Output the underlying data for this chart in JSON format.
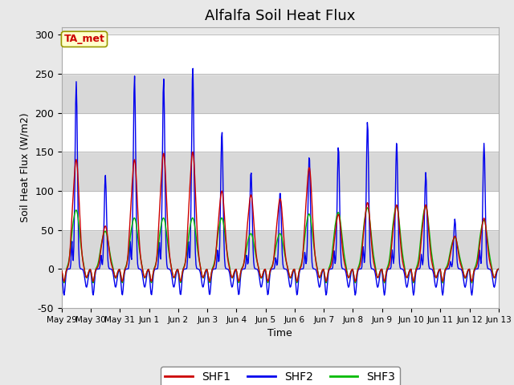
{
  "title": "Alfalfa Soil Heat Flux",
  "xlabel": "Time",
  "ylabel": "Soil Heat Flux (W/m2)",
  "ylim": [
    -50,
    310
  ],
  "yticks": [
    -50,
    0,
    50,
    100,
    150,
    200,
    250,
    300
  ],
  "plot_bg_color": "#e8e8e8",
  "shf1_color": "#cc0000",
  "shf2_color": "#0000ee",
  "shf3_color": "#00bb00",
  "legend_labels": [
    "SHF1",
    "SHF2",
    "SHF3"
  ],
  "annotation_text": "TA_met",
  "annotation_color": "#cc0000",
  "annotation_bg": "#ffffcc",
  "annotation_border": "#999900",
  "num_days": 15,
  "xtick_labels": [
    "May 29",
    "May 30",
    "May 31",
    "Jun 1",
    "Jun 2",
    "Jun 3",
    "Jun 4",
    "Jun 5",
    "Jun 6",
    "Jun 7",
    "Jun 8",
    "Jun 9",
    "Jun 10",
    "Jun 11",
    "Jun 12",
    "Jun 13"
  ],
  "day_peaks_shf2": [
    240,
    120,
    248,
    245,
    260,
    178,
    126,
    100,
    146,
    158,
    190,
    162,
    124,
    64,
    161,
    0
  ],
  "day_peaks_shf1": [
    140,
    55,
    140,
    148,
    150,
    100,
    95,
    90,
    130,
    70,
    85,
    82,
    82,
    42,
    65,
    0
  ],
  "day_peaks_shf3": [
    75,
    48,
    65,
    65,
    65,
    65,
    45,
    45,
    70,
    72,
    78,
    80,
    80,
    40,
    62,
    0
  ],
  "line_width": 1.0,
  "title_fontsize": 13,
  "band_colors": [
    "#ffffff",
    "#d8d8d8",
    "#ffffff",
    "#d8d8d8",
    "#ffffff",
    "#d8d8d8",
    "#ffffff"
  ],
  "band_y_edges": [
    -50,
    0,
    50,
    100,
    150,
    200,
    250,
    300
  ]
}
